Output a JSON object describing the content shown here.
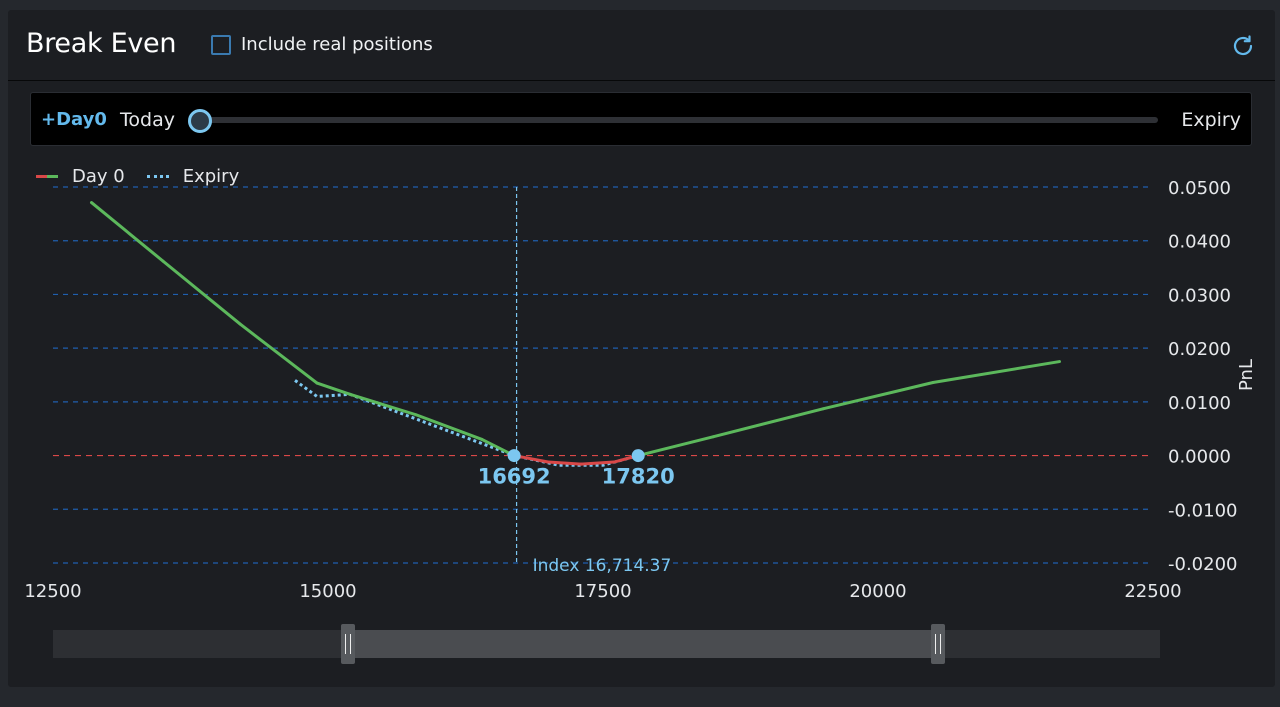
{
  "header": {
    "title": "Break Even",
    "include_label": "Include real positions",
    "include_checked": false
  },
  "slider": {
    "tag": "+Day0",
    "left_label": "Today",
    "right_label": "Expiry",
    "value": 0
  },
  "colors": {
    "loss": "#d94848",
    "profit": "#5cb85c",
    "expiry": "#7cc7f0",
    "grid": "#1f5fae"
  },
  "chart_data": {
    "type": "line",
    "legend": [
      "Day 0",
      "Expiry"
    ],
    "xlim": [
      12500,
      22500
    ],
    "ylim": [
      -0.02,
      0.05
    ],
    "xticks": [
      "12500",
      "15000",
      "17500",
      "20000",
      "22500"
    ],
    "yticks": [
      "0.0500",
      "0.0400",
      "0.0300",
      "0.0200",
      "0.0100",
      "0.0000",
      "-0.0100",
      "-0.0200"
    ],
    "ylabel": "PnL",
    "grid": true,
    "series": [
      {
        "name": "Day 0",
        "style": "solid",
        "x": [
          12850,
          13500,
          14200,
          14900,
          15200,
          15800,
          16400,
          16692,
          17000,
          17300,
          17600,
          17820,
          18500,
          19500,
          20500,
          21650
        ],
        "y": [
          0.0471,
          0.0362,
          0.0245,
          0.0135,
          0.0114,
          0.0076,
          0.003,
          0.0,
          -0.0012,
          -0.0016,
          -0.0012,
          0.0,
          0.0035,
          0.0087,
          0.0136,
          0.0175
        ]
      },
      {
        "name": "Expiry",
        "style": "dotted",
        "x": [
          14700,
          14900,
          15200,
          16692,
          17100,
          17500,
          17820
        ],
        "y": [
          0.014,
          0.011,
          0.0114,
          0.0,
          -0.0018,
          -0.0018,
          0.0
        ]
      }
    ],
    "markers": [
      {
        "x": 16692,
        "y": 0.0,
        "label": "16692"
      },
      {
        "x": 17820,
        "y": 0.0,
        "label": "17820"
      }
    ],
    "index_line": {
      "x": 16714.37,
      "label": "Index 16,714.37"
    }
  }
}
